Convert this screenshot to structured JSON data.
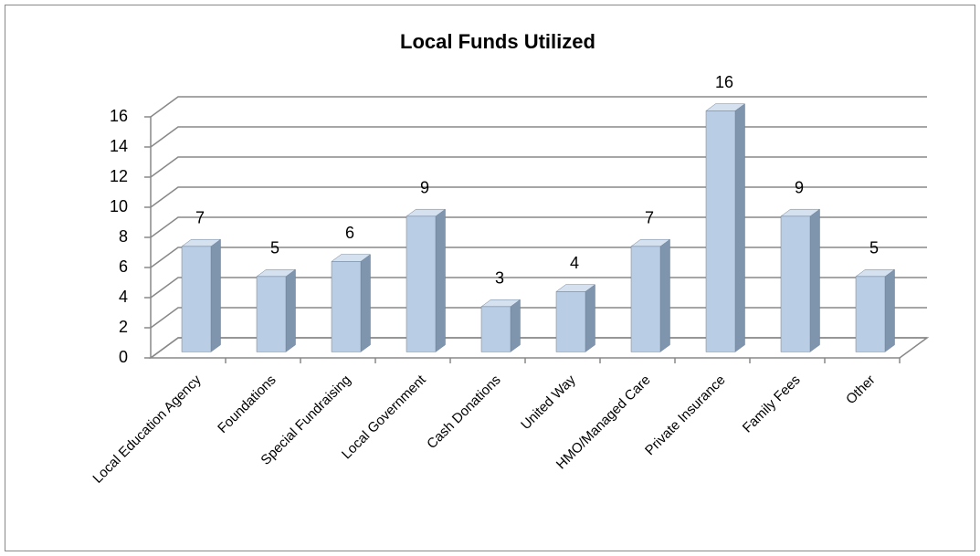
{
  "chart_data": {
    "type": "bar3d",
    "title": "Local Funds Utilized",
    "categories": [
      "Local Education Agency",
      "Foundations",
      "Special Fundraising",
      "Local Government",
      "Cash Donations",
      "United Way",
      "HMO/Managed Care",
      "Private Insurance",
      "Family Fees",
      "Other"
    ],
    "values": [
      7,
      5,
      6,
      9,
      3,
      4,
      7,
      16,
      9,
      5
    ],
    "color": "#b9cde5",
    "ylim": [
      0,
      16
    ],
    "yticks": [
      0,
      2,
      4,
      6,
      8,
      10,
      12,
      14,
      16
    ],
    "grid": true
  }
}
